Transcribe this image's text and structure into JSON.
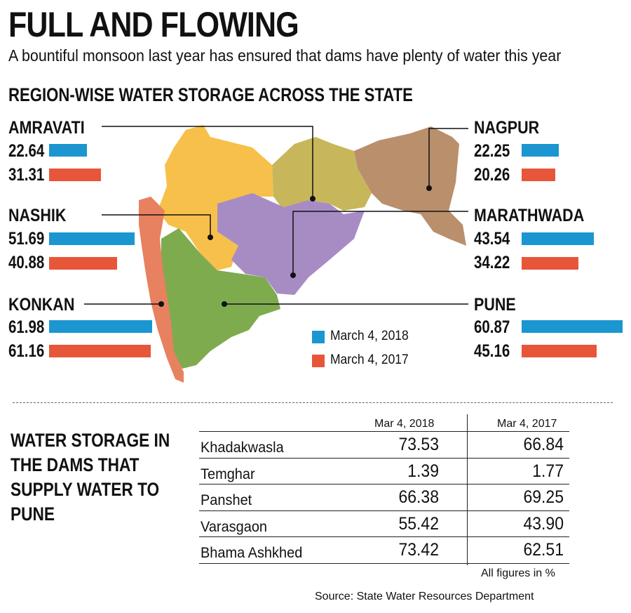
{
  "header": {
    "title": "FULL AND FLOWING",
    "subtitle": "A bountiful monsoon last year has ensured that dams have plenty of water this year"
  },
  "section_region": {
    "heading": "REGION-WISE WATER STORAGE ACROSS THE STATE",
    "legend": [
      {
        "label": "March 4, 2018",
        "color": "#1b96d1"
      },
      {
        "label": "March 4, 2017",
        "color": "#e8563a"
      }
    ]
  },
  "section_dams": {
    "heading": "WATER STORAGE IN THE DAMS THAT SUPPLY WATER TO PUNE",
    "col_headers": [
      "Mar 4, 2018",
      "Mar 4, 2017"
    ],
    "units_note": "All figures in %",
    "source": "Source: State Water Resources Department"
  },
  "chart_data": [
    {
      "type": "bar",
      "title": "REGION-WISE WATER STORAGE ACROSS THE STATE",
      "categories": [
        "AMRAVATI",
        "NASHIK",
        "KONKAN",
        "NAGPUR",
        "MARATHWADA",
        "PUNE"
      ],
      "series": [
        {
          "name": "March 4, 2018",
          "values": [
            22.64,
            51.69,
            61.98,
            22.25,
            43.54,
            60.87
          ],
          "labels": [
            "22.64",
            "51.69",
            "61.98",
            "22.25",
            "43.54",
            "60.87"
          ],
          "color": "#1b96d1"
        },
        {
          "name": "March 4, 2017",
          "values": [
            31.31,
            40.88,
            61.16,
            20.26,
            34.22,
            45.16
          ],
          "labels": [
            "31.31",
            "40.88",
            "61.16",
            "20.26",
            "34.22",
            "45.16"
          ],
          "color": "#e8563a"
        }
      ],
      "region_colors": {
        "AMRAVATI": "#f7c04a",
        "NAGPUR": "#b98f6c",
        "MARATHWADA": "#a78cc4",
        "NASHIK": "#f7c04a",
        "KONKAN": "#e8815f",
        "PUNE": "#7fab4f",
        "MAP_OLIVE": "#c7b75a"
      }
    },
    {
      "type": "table",
      "title": "WATER STORAGE IN THE DAMS THAT SUPPLY WATER TO PUNE",
      "columns": [
        "Mar 4, 2018",
        "Mar 4, 2017"
      ],
      "rows": [
        {
          "name": "Khadakwasla",
          "values": [
            "73.53",
            "66.84"
          ]
        },
        {
          "name": "Temghar",
          "values": [
            "1.39",
            "1.77"
          ]
        },
        {
          "name": "Panshet",
          "values": [
            "66.38",
            "69.25"
          ]
        },
        {
          "name": "Varasgaon",
          "values": [
            "55.42",
            "43.90"
          ]
        },
        {
          "name": "Bhama Ashkhed",
          "values": [
            "73.42",
            "62.51"
          ]
        }
      ]
    }
  ]
}
